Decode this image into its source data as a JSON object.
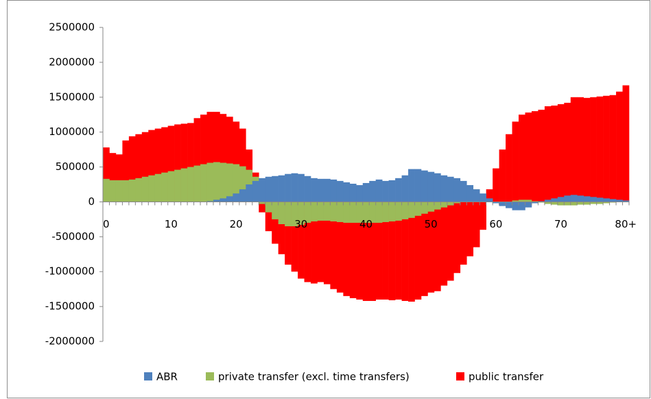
{
  "chart_data": {
    "type": "bar",
    "categories": [
      "0",
      null,
      null,
      null,
      null,
      null,
      null,
      null,
      null,
      null,
      "10",
      null,
      null,
      null,
      null,
      null,
      null,
      null,
      null,
      null,
      "20",
      null,
      null,
      null,
      null,
      null,
      null,
      null,
      null,
      null,
      "30",
      null,
      null,
      null,
      null,
      null,
      null,
      null,
      null,
      null,
      "40",
      null,
      null,
      null,
      null,
      null,
      null,
      null,
      null,
      null,
      "50",
      null,
      null,
      null,
      null,
      null,
      null,
      null,
      null,
      null,
      "60",
      null,
      null,
      null,
      null,
      null,
      null,
      null,
      null,
      null,
      "70",
      null,
      null,
      null,
      null,
      null,
      null,
      null,
      null,
      null,
      "80+"
    ],
    "series": [
      {
        "name": "public transfer",
        "color": "#ff0000",
        "values": [
          780000,
          700000,
          680000,
          880000,
          940000,
          970000,
          1000000,
          1030000,
          1050000,
          1070000,
          1090000,
          1110000,
          1120000,
          1130000,
          1200000,
          1250000,
          1290000,
          1290000,
          1260000,
          1220000,
          1150000,
          1050000,
          750000,
          420000,
          -150000,
          -420000,
          -600000,
          -750000,
          -900000,
          -1000000,
          -1100000,
          -1150000,
          -1170000,
          -1150000,
          -1180000,
          -1250000,
          -1300000,
          -1350000,
          -1380000,
          -1400000,
          -1420000,
          -1420000,
          -1400000,
          -1400000,
          -1410000,
          -1400000,
          -1420000,
          -1430000,
          -1400000,
          -1350000,
          -1300000,
          -1280000,
          -1200000,
          -1130000,
          -1020000,
          -900000,
          -780000,
          -650000,
          -400000,
          180000,
          480000,
          750000,
          970000,
          1150000,
          1250000,
          1280000,
          1300000,
          1320000,
          1370000,
          1380000,
          1400000,
          1420000,
          1500000,
          1500000,
          1490000,
          1500000,
          1510000,
          1520000,
          1530000,
          1580000,
          1670000
        ]
      },
      {
        "name": "private transfer (excl. time transfers)",
        "color": "#9bbb59",
        "values": [
          330000,
          310000,
          310000,
          310000,
          320000,
          340000,
          360000,
          380000,
          400000,
          420000,
          440000,
          460000,
          480000,
          500000,
          520000,
          540000,
          560000,
          570000,
          560000,
          550000,
          540000,
          510000,
          460000,
          360000,
          -30000,
          -150000,
          -250000,
          -320000,
          -350000,
          -350000,
          -330000,
          -300000,
          -280000,
          -270000,
          -270000,
          -280000,
          -290000,
          -300000,
          -300000,
          -300000,
          -300000,
          -300000,
          -300000,
          -290000,
          -280000,
          -270000,
          -250000,
          -230000,
          -200000,
          -170000,
          -140000,
          -110000,
          -80000,
          -50000,
          -20000,
          220000,
          240000,
          180000,
          60000,
          0,
          -10000,
          -10000,
          0,
          20000,
          30000,
          30000,
          10000,
          -10000,
          -30000,
          -40000,
          -50000,
          -50000,
          -50000,
          -40000,
          -40000,
          -30000,
          -30000,
          -20000,
          -10000,
          0,
          0
        ]
      },
      {
        "name": "ABR",
        "color": "#4f81bd",
        "values": [
          0,
          0,
          0,
          0,
          0,
          0,
          0,
          0,
          0,
          0,
          0,
          0,
          0,
          0,
          0,
          0,
          10000,
          30000,
          50000,
          80000,
          120000,
          180000,
          250000,
          300000,
          340000,
          360000,
          370000,
          380000,
          400000,
          410000,
          400000,
          370000,
          340000,
          330000,
          330000,
          320000,
          300000,
          280000,
          260000,
          240000,
          270000,
          300000,
          320000,
          300000,
          310000,
          340000,
          380000,
          470000,
          470000,
          450000,
          430000,
          410000,
          380000,
          360000,
          340000,
          300000,
          240000,
          180000,
          120000,
          50000,
          -20000,
          -60000,
          -90000,
          -120000,
          -120000,
          -80000,
          -20000,
          10000,
          30000,
          50000,
          70000,
          90000,
          100000,
          90000,
          80000,
          70000,
          60000,
          50000,
          40000,
          30000,
          20000
        ]
      }
    ],
    "legend_order": [
      "ABR",
      "private transfer (excl. time transfers)",
      "public transfer"
    ],
    "ylim": [
      -2000000,
      2500000
    ],
    "yticks": [
      -2000000,
      -1500000,
      -1000000,
      -500000,
      0,
      500000,
      1000000,
      1500000,
      2000000,
      2500000
    ],
    "grid": false
  }
}
